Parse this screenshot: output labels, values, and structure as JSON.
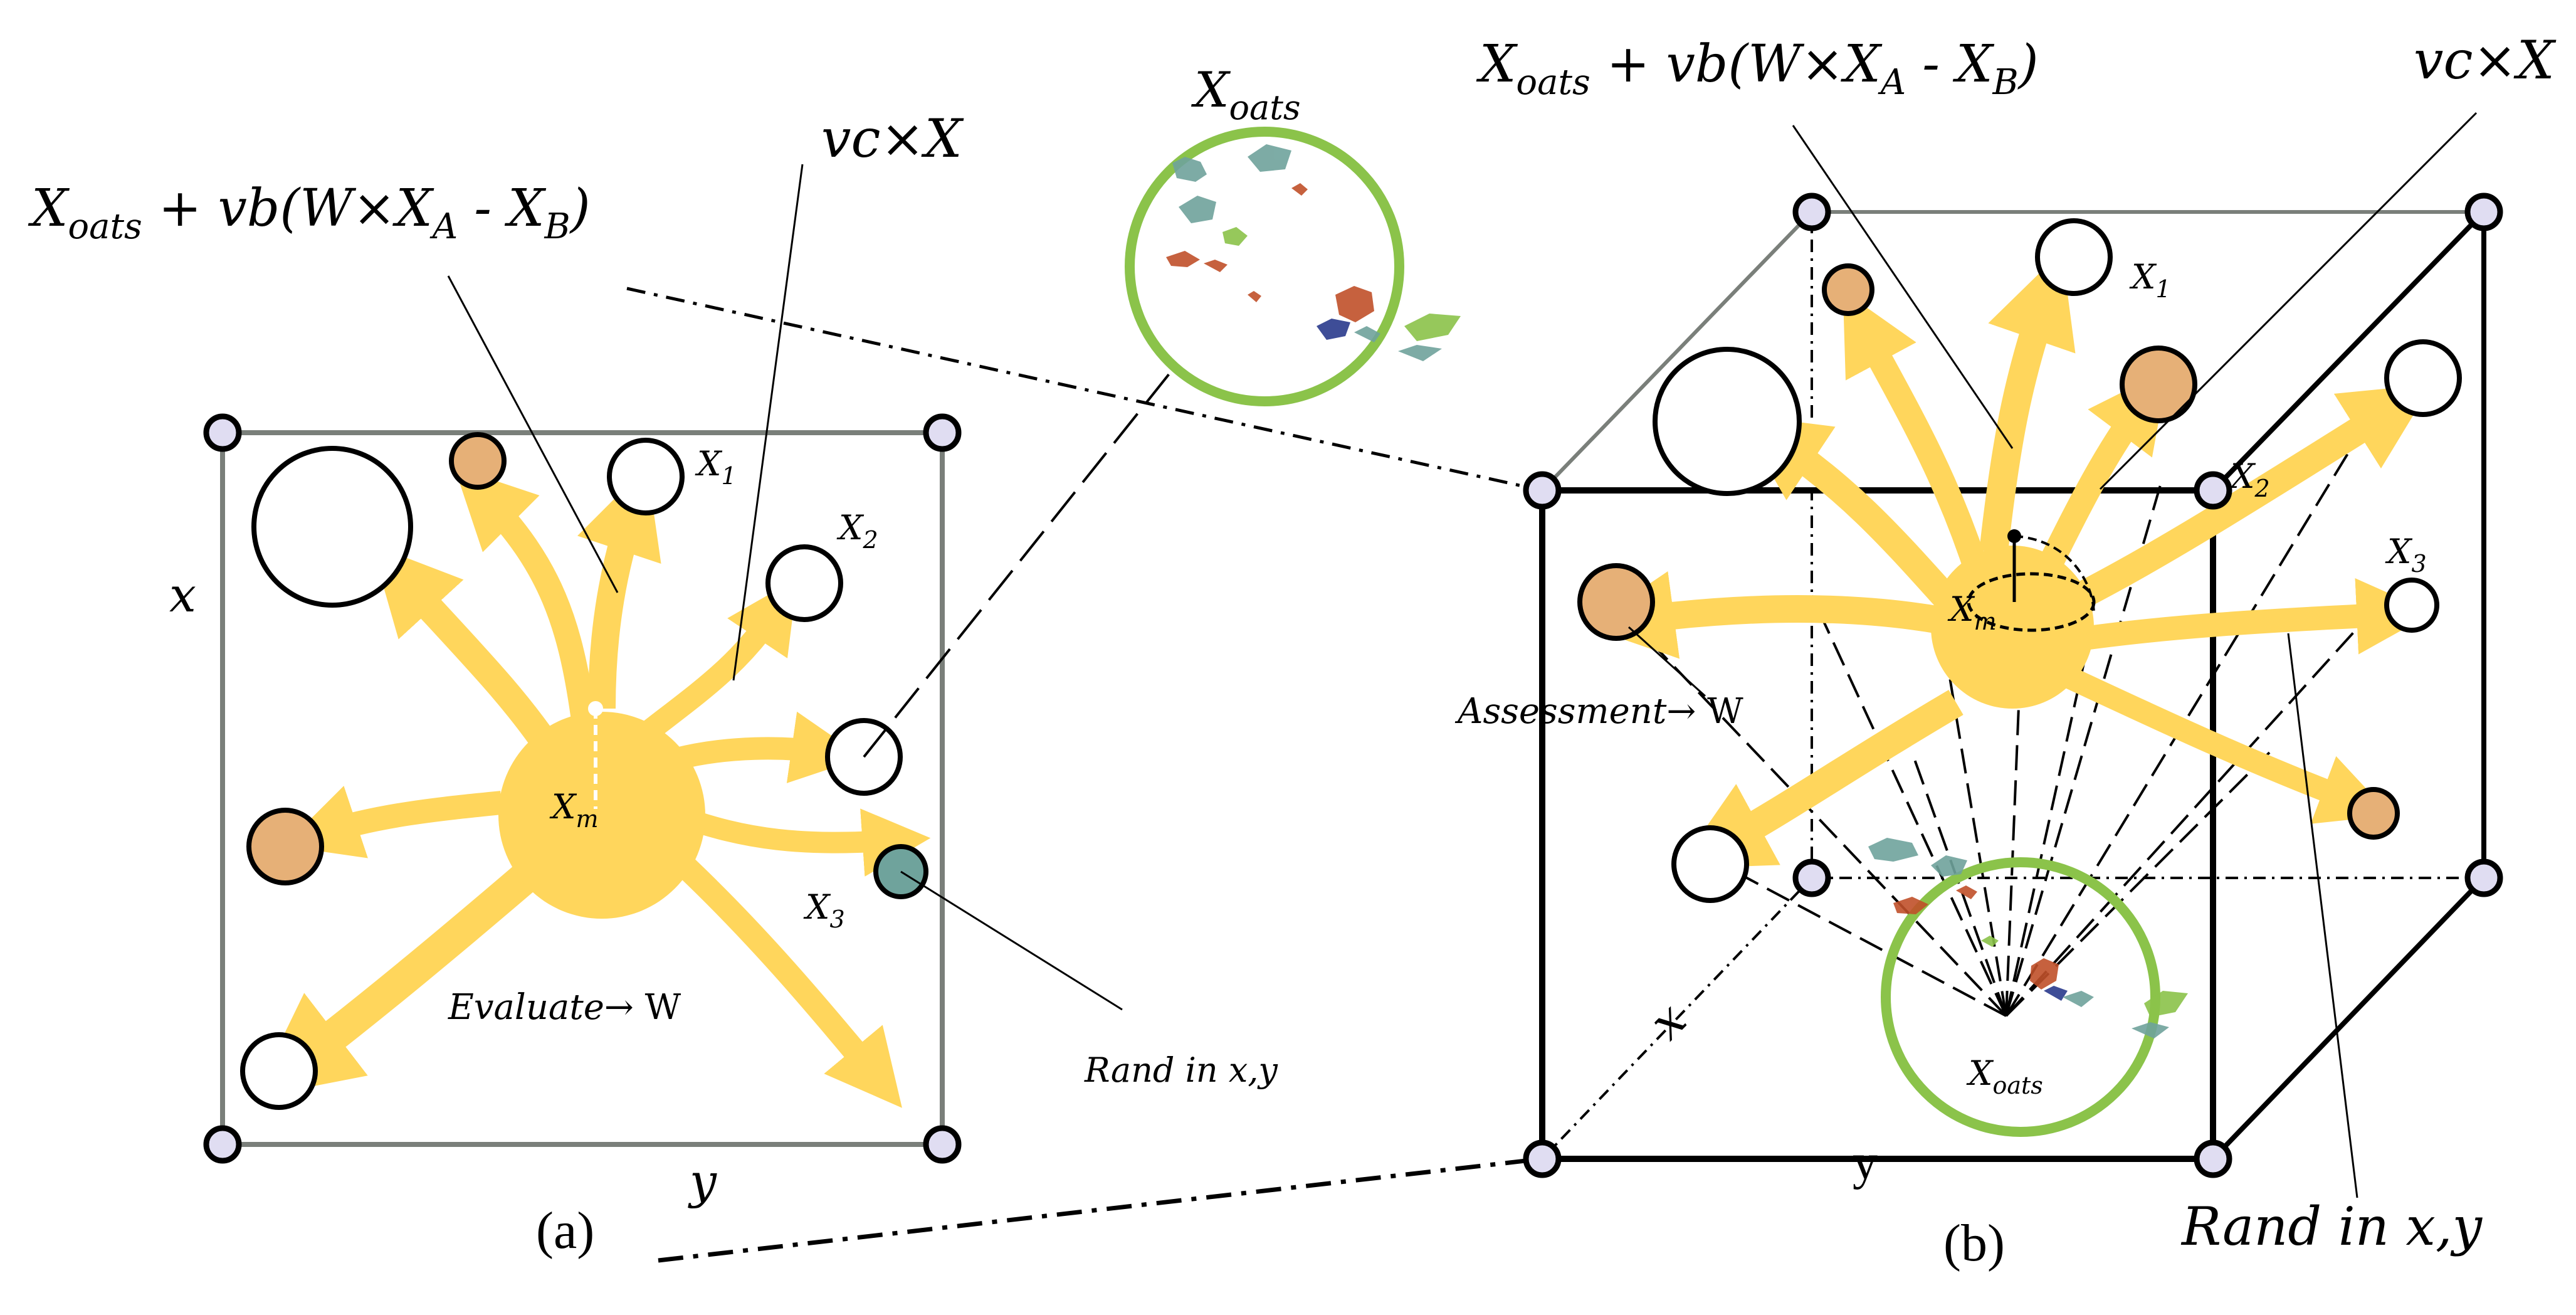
{
  "panel_a": {
    "caption": "(a)",
    "formula_main": "X",
    "formula_sub": "oats",
    "formula_rest_1": " + vb(W",
    "formula_times": "×",
    "formula_rest_2": "X",
    "formula_sub_a": "A",
    "formula_rest_3": " - X",
    "formula_sub_b": "B",
    "formula_close": ")",
    "vc_label": "vcX",
    "vc_prefix": "vc",
    "vc_times": "×",
    "vc_x": "X",
    "axis_x": "x",
    "axis_y": "y",
    "x1": "X",
    "x1_sub": "1",
    "x2": "X",
    "x2_sub": "2",
    "x3": "X",
    "x3_sub": "3",
    "xm": "X",
    "xm_sub": "m",
    "evaluate": "Evaluate",
    "arrow_w": "→  W",
    "rand": "Rand in x,y"
  },
  "oats_inset": {
    "title_main": "X",
    "title_sub": "oats"
  },
  "panel_b": {
    "caption": "(b)",
    "formula_main": "X",
    "formula_sub": "oats",
    "formula_rest_1": " + vb(W",
    "formula_times": "×",
    "formula_rest_2": "X",
    "formula_sub_a": "A",
    "formula_rest_3": " - X",
    "formula_sub_b": "B",
    "formula_close": ")",
    "vc_prefix": "vc",
    "vc_times": "×",
    "vc_x": "X",
    "x1": "X",
    "x1_sub": "1",
    "x2": "X",
    "x2_sub": "2",
    "x3": "X",
    "x3_sub": "3",
    "xm": "X",
    "xm_sub": "m",
    "assessment": "Assessment",
    "arrow_w": "→ W",
    "oats_main": "X",
    "oats_sub": "oats",
    "axis_x": "x",
    "axis_y": "y",
    "rand": "Rand in x,y"
  },
  "colors": {
    "arrow": "#FFD65C",
    "orange_node": "#E6B077",
    "teal_node": "#6FA39C",
    "corner_node": "#E0DDF2",
    "green_ring": "#8BC34A",
    "frame_gray": "#7a7f7a"
  }
}
